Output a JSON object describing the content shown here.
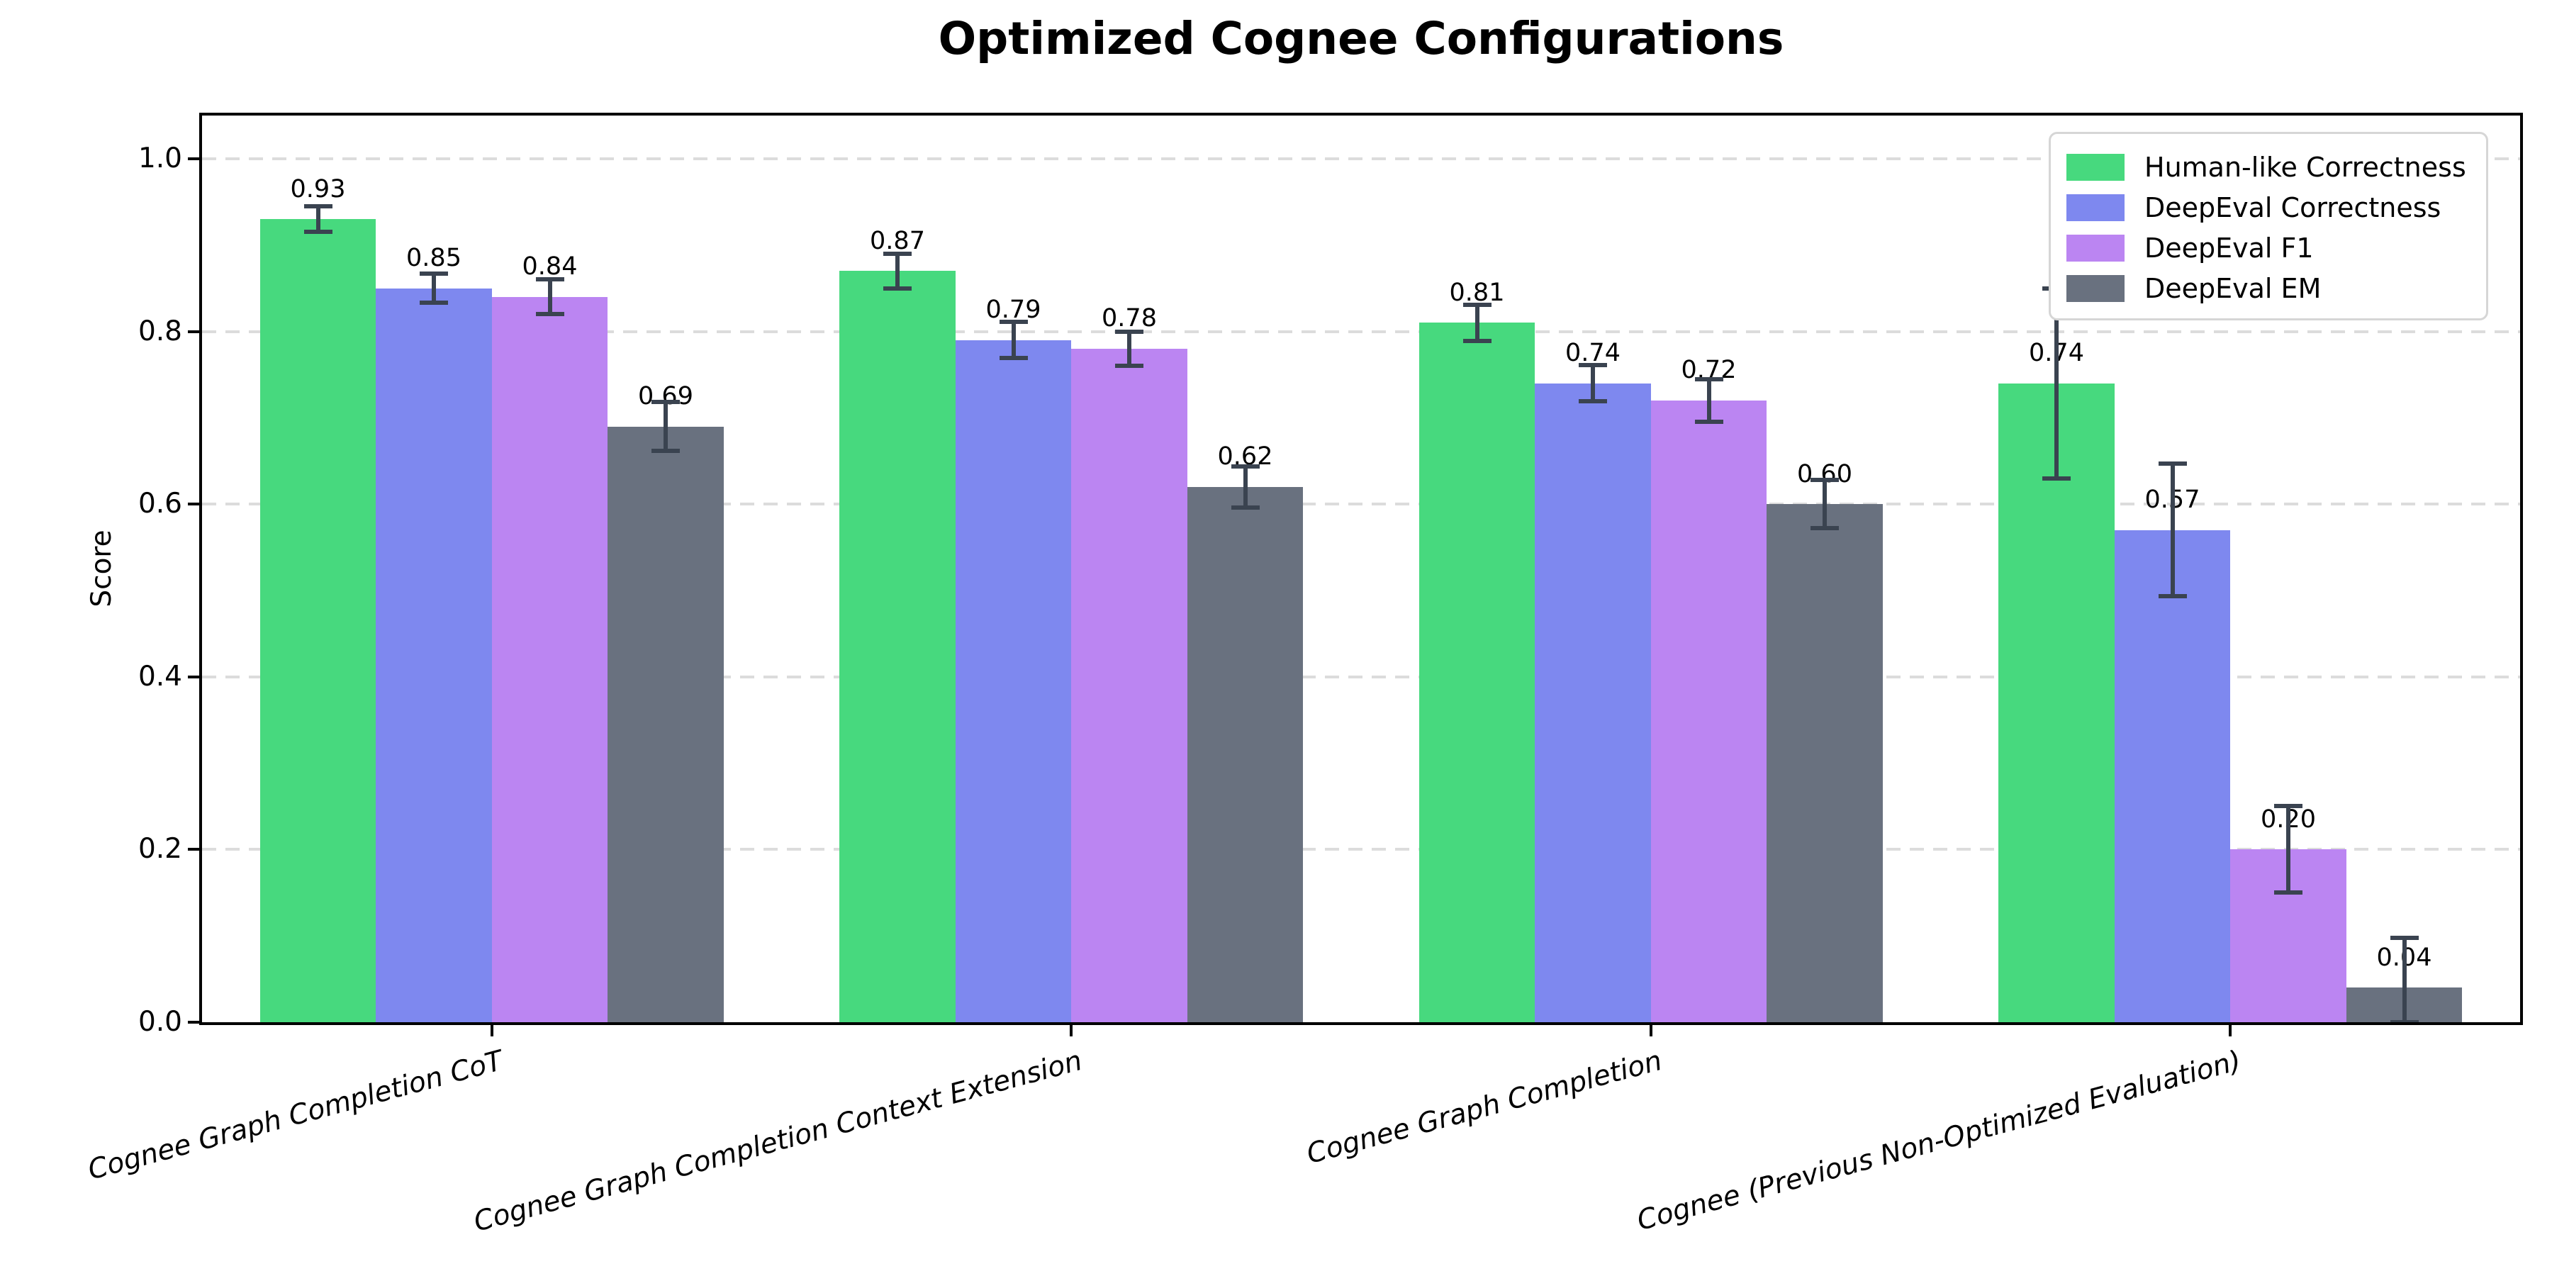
{
  "figure": {
    "background": "#ffffff",
    "text_color": "#000000"
  },
  "chart_data": {
    "type": "bar",
    "title": "Optimized Cognee Configurations",
    "xlabel": "",
    "ylabel": "Score",
    "ylim": [
      0,
      1.05
    ],
    "ytick_labels": [
      "0.0",
      "0.2",
      "0.4",
      "0.6",
      "0.8",
      "1.0"
    ],
    "grid": {
      "axis": "y",
      "style": "dashed",
      "color": "#dcdcdc"
    },
    "legend": {
      "position": "upper right",
      "border_color": "#d6d6d6",
      "background": "#ffffff"
    },
    "error_bar_color": "#3a4350",
    "categories": [
      "Cognee Graph Completion CoT",
      "Cognee Graph Completion Context Extension",
      "Cognee Graph Completion",
      "Cognee (Previous Non-Optimized Evaluation)"
    ],
    "series": [
      {
        "name": "Human-like Correctness",
        "color": "#47d97e",
        "values": [
          0.93,
          0.87,
          0.81,
          0.74
        ],
        "value_labels": [
          "0.93",
          "0.87",
          "0.81",
          "0.74"
        ],
        "errors": [
          0.015,
          0.02,
          0.021,
          0.11
        ]
      },
      {
        "name": "DeepEval Correctness",
        "color": "#7e88ef",
        "values": [
          0.85,
          0.79,
          0.74,
          0.57
        ],
        "value_labels": [
          "0.85",
          "0.79",
          "0.74",
          "0.57"
        ],
        "errors": [
          0.017,
          0.021,
          0.021,
          0.077
        ]
      },
      {
        "name": "DeepEval F1",
        "color": "#bb85f2",
        "values": [
          0.84,
          0.78,
          0.72,
          0.2
        ],
        "value_labels": [
          "0.84",
          "0.78",
          "0.72",
          "0.20"
        ],
        "errors": [
          0.02,
          0.02,
          0.025,
          0.05
        ]
      },
      {
        "name": "DeepEval EM",
        "color": "#69717f",
        "values": [
          0.69,
          0.62,
          0.6,
          0.04
        ],
        "value_labels": [
          "0.69",
          "0.62",
          "0.60",
          "0.04"
        ],
        "errors": [
          0.028,
          0.024,
          0.028,
          0.058
        ]
      }
    ]
  }
}
